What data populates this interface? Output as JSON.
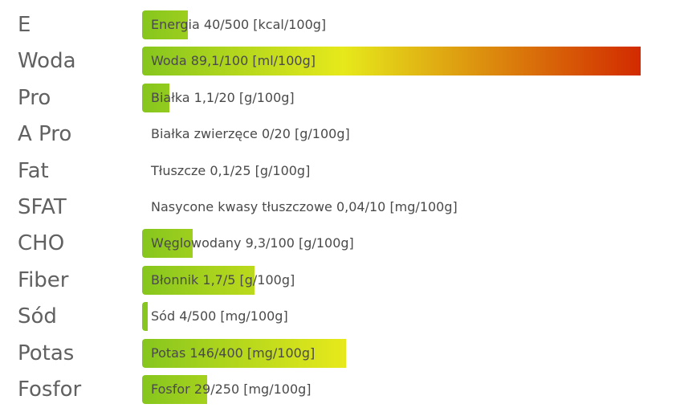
{
  "nutrients": [
    {
      "abbr": "E",
      "label": "Energia 40/500 [kcal/100g]",
      "fill": 0.092
    },
    {
      "abbr": "Woda",
      "label": "Woda 89,1/100 [ml/100g]",
      "fill": 1.0
    },
    {
      "abbr": "Pro",
      "label": "Białka 1,1/20 [g/100g]",
      "fill": 0.055
    },
    {
      "abbr": "A Pro",
      "label": "Białka zwierzęce 0/20 [g/100g]",
      "fill": 0
    },
    {
      "abbr": "Fat",
      "label": "Tłuszcze 0,1/25 [g/100g]",
      "fill": 0
    },
    {
      "abbr": "SFAT",
      "label": "Nasycone kwasy tłuszczowe 0,04/10 [mg/100g]",
      "fill": 0
    },
    {
      "abbr": "CHO",
      "label": "Węglowodany 9,3/100 [g/100g]",
      "fill": 0.101
    },
    {
      "abbr": "Fiber",
      "label": "Błonnik 1,7/5 [g/100g]",
      "fill": 0.226
    },
    {
      "abbr": "Sód",
      "label": "Sód 4/500 [mg/100g]",
      "fill": 0.012
    },
    {
      "abbr": "Potas",
      "label": "Potas 146/400 [mg/100g]",
      "fill": 0.409
    },
    {
      "abbr": "Fosfor",
      "label": "Fosfor 29/250 [mg/100g]",
      "fill": 0.13
    }
  ],
  "colors": {
    "low": "#86c61e",
    "mid": "#e6e91b",
    "high": "#d22a00"
  }
}
